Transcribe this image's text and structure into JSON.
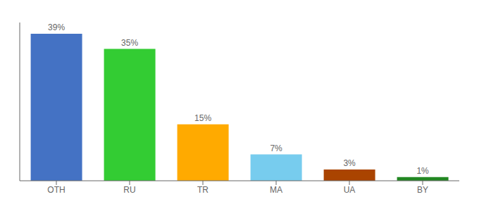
{
  "chart_data": {
    "type": "bar",
    "categories": [
      "OTH",
      "RU",
      "TR",
      "MA",
      "UA",
      "BY"
    ],
    "values": [
      39,
      35,
      15,
      7,
      3,
      1
    ],
    "value_labels": [
      "39%",
      "35%",
      "15%",
      "7%",
      "3%",
      "1%"
    ],
    "colors": [
      "#4472c4",
      "#33cc33",
      "#ffaa00",
      "#77ccee",
      "#aa4400",
      "#228822"
    ],
    "ylim": [
      0,
      42
    ],
    "data_labels": true,
    "tick_labels": "x",
    "grid": false
  }
}
